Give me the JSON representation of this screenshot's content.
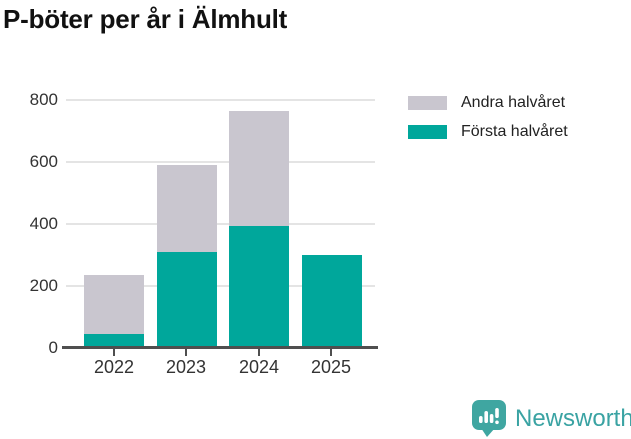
{
  "chart_data": {
    "type": "bar",
    "stacked": true,
    "title": "P-böter per år i Älmhult",
    "categories": [
      "2022",
      "2023",
      "2024",
      "2025"
    ],
    "series": [
      {
        "name": "Första halvåret",
        "color": "#00a79b",
        "values": [
          45,
          310,
          395,
          300
        ]
      },
      {
        "name": "Andra halvåret",
        "color": "#c9c6cf",
        "values": [
          190,
          280,
          370,
          0
        ]
      }
    ],
    "stacked_totals": [
      235,
      590,
      765,
      300
    ],
    "xlabel": "",
    "ylabel": "",
    "ylim": [
      0,
      800
    ],
    "yticks": [
      0,
      200,
      400,
      600,
      800
    ],
    "grid": true,
    "legend_position": "top-right",
    "legend_order": [
      "Andra halvåret",
      "Första halvåret"
    ],
    "axis_color": "#4f4f4f",
    "gridline_color": "#e4e4e4"
  },
  "branding": {
    "logo_text": "Newsworthy",
    "logo_color": "#3aa3a3",
    "icon": "newsworthy-speech-bubble-bar-chart-icon"
  }
}
